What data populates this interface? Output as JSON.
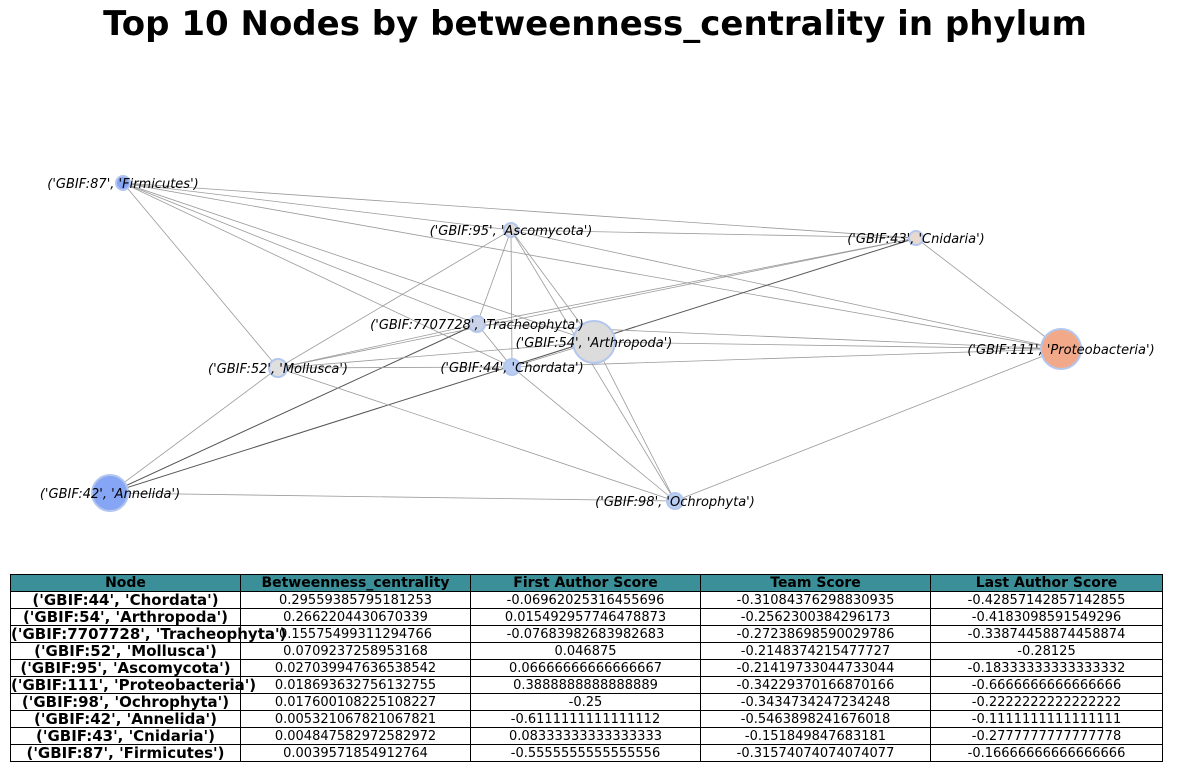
{
  "title": "Top 10 Nodes by betweenness_centrality in phylum",
  "graph": {
    "nodes": [
      {
        "id": "chordata",
        "label": "('GBIF:44', 'Chordata')",
        "color": "#b9cdf2"
      },
      {
        "id": "arthropoda",
        "label": "('GBIF:54', 'Arthropoda')",
        "color": "#dcdcdc"
      },
      {
        "id": "tracheophyta",
        "label": "('GBIF:7707728', 'Tracheophyta')",
        "color": "#c9d2e6"
      },
      {
        "id": "mollusca",
        "label": "('GBIF:52', 'Mollusca')",
        "color": "#dfdfdf"
      },
      {
        "id": "ascomycota",
        "label": "('GBIF:95', 'Ascomycota')",
        "color": "#dcdcdc"
      },
      {
        "id": "proteobacteria",
        "label": "('GBIF:111', 'Proteobacteria')",
        "color": "#f2a98a"
      },
      {
        "id": "ochrophyta",
        "label": "('GBIF:98', 'Ochrophyta')",
        "color": "#b9cdf2"
      },
      {
        "id": "annelida",
        "label": "('GBIF:42', 'Annelida')",
        "color": "#86a5f5"
      },
      {
        "id": "cnidaria",
        "label": "('GBIF:43', 'Cnidaria')",
        "color": "#e6d9d2"
      },
      {
        "id": "firmicutes",
        "label": "('GBIF:87', 'Firmicutes')",
        "color": "#86a5f5"
      }
    ],
    "edges": [
      [
        "firmicutes",
        "ascomycota"
      ],
      [
        "firmicutes",
        "cnidaria"
      ],
      [
        "firmicutes",
        "tracheophyta"
      ],
      [
        "firmicutes",
        "arthropoda"
      ],
      [
        "firmicutes",
        "chordata"
      ],
      [
        "firmicutes",
        "mollusca"
      ],
      [
        "firmicutes",
        "proteobacteria"
      ],
      [
        "ascomycota",
        "cnidaria"
      ],
      [
        "ascomycota",
        "tracheophyta"
      ],
      [
        "ascomycota",
        "arthropoda"
      ],
      [
        "ascomycota",
        "chordata"
      ],
      [
        "ascomycota",
        "mollusca"
      ],
      [
        "ascomycota",
        "ochrophyta"
      ],
      [
        "ascomycota",
        "proteobacteria"
      ],
      [
        "cnidaria",
        "mollusca"
      ],
      [
        "cnidaria",
        "proteobacteria"
      ],
      [
        "cnidaria",
        "tracheophyta"
      ],
      [
        "cnidaria",
        "annelida"
      ],
      [
        "tracheophyta",
        "mollusca"
      ],
      [
        "tracheophyta",
        "proteobacteria"
      ],
      [
        "tracheophyta",
        "annelida"
      ],
      [
        "tracheophyta",
        "chordata"
      ],
      [
        "arthropoda",
        "mollusca"
      ],
      [
        "arthropoda",
        "proteobacteria"
      ],
      [
        "arthropoda",
        "ochrophyta"
      ],
      [
        "arthropoda",
        "chordata"
      ],
      [
        "chordata",
        "mollusca"
      ],
      [
        "chordata",
        "proteobacteria"
      ],
      [
        "chordata",
        "ochrophyta"
      ],
      [
        "mollusca",
        "annelida"
      ],
      [
        "mollusca",
        "ochrophyta"
      ],
      [
        "annelida",
        "ochrophyta"
      ],
      [
        "ochrophyta",
        "proteobacteria"
      ]
    ]
  },
  "table": {
    "headers": [
      "Node",
      "Betweenness_centrality",
      "First Author Score",
      "Team Score",
      "Last Author Score"
    ],
    "header_color": "#3a8f98",
    "rows": [
      [
        "('GBIF:44', 'Chordata')",
        "0.29559385795181253",
        "-0.06962025316455696",
        "-0.31084376298830935",
        "-0.42857142857142855"
      ],
      [
        "('GBIF:54', 'Arthropoda')",
        "0.2662204430670339",
        "0.015492957746478873",
        "-0.2562300384296173",
        "-0.4183098591549296"
      ],
      [
        "('GBIF:7707728', 'Tracheophyta')",
        "0.15575499311294766",
        "-0.07683982683982683",
        "-0.27238698590029786",
        "-0.33874458874458874"
      ],
      [
        "('GBIF:52', 'Mollusca')",
        "0.0709237258953168",
        "0.046875",
        "-0.2148374215477727",
        "-0.28125"
      ],
      [
        "('GBIF:95', 'Ascomycota')",
        "0.027039947636538542",
        "0.06666666666666667",
        "-0.21419733044733044",
        "-0.18333333333333332"
      ],
      [
        "('GBIF:111', 'Proteobacteria')",
        "0.018693632756132755",
        "0.3888888888888889",
        "-0.34229370166870166",
        "-0.6666666666666666"
      ],
      [
        "('GBIF:98', 'Ochrophyta')",
        "0.017600108225108227",
        "-0.25",
        "-0.3434734247234248",
        "-0.2222222222222222"
      ],
      [
        "('GBIF:42', 'Annelida')",
        "0.005321067821067821",
        "-0.6111111111111112",
        "-0.5463898241676018",
        "-0.1111111111111111"
      ],
      [
        "('GBIF:43', 'Cnidaria')",
        "0.004847582972582972",
        "0.08333333333333333",
        "-0.151849847683181",
        "-0.2777777777777778"
      ],
      [
        "('GBIF:87', 'Firmicutes')",
        "0.0039571854912764",
        "-0.5555555555555556",
        "-0.31574074074074077",
        "-0.16666666666666666"
      ]
    ]
  }
}
